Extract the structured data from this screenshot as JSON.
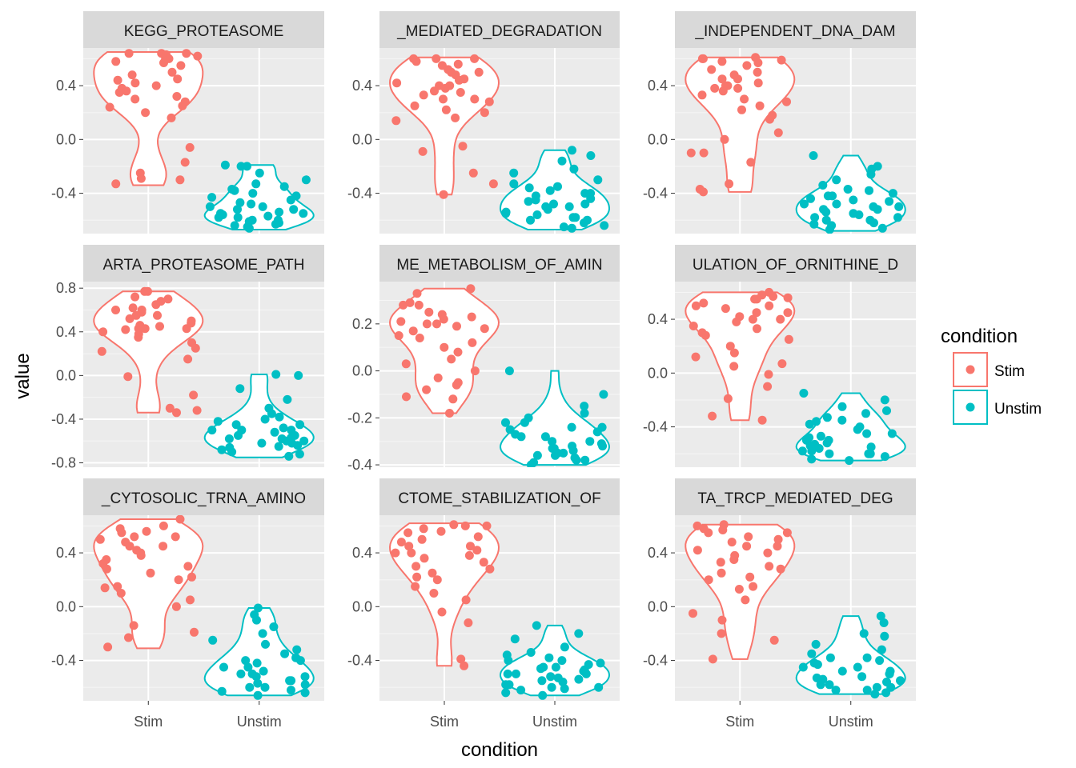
{
  "chart_data": {
    "type": "violin",
    "xlabel": "condition",
    "ylabel": "value",
    "categories": [
      "Stim",
      "Unstim"
    ],
    "colors": {
      "Stim": "#F8766D",
      "Unstim": "#00BFC4"
    },
    "legend": {
      "title": "condition",
      "placement": "right",
      "entries": [
        "Stim",
        "Unstim"
      ]
    },
    "panels": [
      {
        "title": "KEGG_PROTEASOME",
        "ylim": [
          -0.7,
          0.68
        ],
        "yticks": [
          -0.4,
          0.0,
          0.4
        ],
        "series": [
          {
            "name": "Stim",
            "range": [
              -0.34,
              0.65
            ],
            "points": [
              0.57,
              0.64,
              0.64,
              0.62,
              0.63,
              0.6,
              0.58,
              0.64,
              0.6,
              0.55,
              0.5,
              0.48,
              0.45,
              0.44,
              0.4,
              0.38,
              0.35,
              0.32,
              0.28,
              0.25,
              0.24,
              0.2,
              0.16,
              0.3,
              0.36,
              0.42,
              -0.06,
              -0.17,
              -0.25,
              -0.29,
              -0.3,
              -0.33
            ]
          },
          {
            "name": "Unstim",
            "range": [
              -0.67,
              -0.19
            ],
            "points": [
              -0.19,
              -0.2,
              -0.2,
              -0.25,
              -0.3,
              -0.33,
              -0.35,
              -0.37,
              -0.4,
              -0.42,
              -0.45,
              -0.47,
              -0.5,
              -0.52,
              -0.54,
              -0.55,
              -0.57,
              -0.58,
              -0.6,
              -0.61,
              -0.62,
              -0.64,
              -0.65,
              -0.66,
              -0.48,
              -0.55,
              -0.6,
              -0.43,
              -0.38,
              -0.56,
              -0.63,
              -0.5,
              -0.58,
              -0.52
            ]
          }
        ]
      },
      {
        "title": "_MEDIATED_DEGRADATION",
        "ylim": [
          -0.7,
          0.68
        ],
        "yticks": [
          -0.4,
          0.0,
          0.4
        ],
        "series": [
          {
            "name": "Stim",
            "range": [
              -0.41,
              0.61
            ],
            "points": [
              0.6,
              0.58,
              0.6,
              0.55,
              0.52,
              0.5,
              0.48,
              0.45,
              0.42,
              0.4,
              0.4,
              0.38,
              0.35,
              0.33,
              0.3,
              0.28,
              0.25,
              0.22,
              0.2,
              0.16,
              0.14,
              0.56,
              0.44,
              0.36,
              0.3,
              -0.05,
              -0.09,
              -0.25,
              -0.33,
              -0.41,
              0.6,
              0.5
            ]
          },
          {
            "name": "Unstim",
            "range": [
              -0.67,
              -0.08
            ],
            "points": [
              -0.08,
              -0.12,
              -0.16,
              -0.22,
              -0.25,
              -0.3,
              -0.33,
              -0.36,
              -0.38,
              -0.4,
              -0.42,
              -0.44,
              -0.46,
              -0.48,
              -0.5,
              -0.52,
              -0.54,
              -0.56,
              -0.58,
              -0.6,
              -0.62,
              -0.64,
              -0.65,
              -0.4,
              -0.45,
              -0.55,
              -0.6,
              -0.35,
              -0.5,
              -0.58,
              -0.66,
              -0.48
            ]
          }
        ]
      },
      {
        "title": "_INDEPENDENT_DNA_DAM",
        "ylim": [
          -0.7,
          0.68
        ],
        "yticks": [
          -0.4,
          0.0,
          0.4
        ],
        "series": [
          {
            "name": "Stim",
            "range": [
              -0.39,
              0.61
            ],
            "points": [
              0.61,
              0.59,
              0.57,
              0.6,
              0.55,
              0.52,
              0.5,
              0.48,
              0.45,
              0.42,
              0.4,
              0.4,
              0.38,
              0.36,
              0.33,
              0.3,
              0.28,
              0.25,
              0.22,
              0.18,
              0.15,
              0.58,
              0.45,
              0.38,
              -0.1,
              0.05,
              0.0,
              -0.1,
              -0.17,
              -0.33,
              -0.37,
              -0.39,
              0.6
            ]
          },
          {
            "name": "Unstim",
            "range": [
              -0.68,
              -0.12
            ],
            "points": [
              -0.12,
              -0.2,
              -0.22,
              -0.26,
              -0.3,
              -0.34,
              -0.37,
              -0.4,
              -0.42,
              -0.44,
              -0.46,
              -0.48,
              -0.5,
              -0.52,
              -0.54,
              -0.56,
              -0.58,
              -0.6,
              -0.62,
              -0.64,
              -0.66,
              -0.67,
              -0.45,
              -0.5,
              -0.55,
              -0.6,
              -0.38,
              -0.42,
              -0.58,
              -0.52,
              -0.48,
              -0.63
            ]
          }
        ]
      },
      {
        "title": "ARTA_PROTEASOME_PATH",
        "ylim": [
          -0.84,
          0.86
        ],
        "yticks": [
          -0.8,
          -0.4,
          0.0,
          0.4,
          0.8
        ],
        "series": [
          {
            "name": "Stim",
            "range": [
              -0.34,
              0.77
            ],
            "points": [
              0.77,
              0.77,
              0.72,
              0.7,
              0.68,
              0.65,
              0.62,
              0.6,
              0.58,
              0.55,
              0.52,
              0.5,
              0.48,
              0.45,
              0.43,
              0.43,
              0.42,
              0.4,
              0.38,
              0.35,
              0.3,
              0.25,
              0.22,
              0.46,
              0.55,
              0.6,
              0.15,
              -0.01,
              -0.18,
              -0.3,
              -0.32,
              -0.34,
              0.43
            ]
          },
          {
            "name": "Unstim",
            "range": [
              -0.75,
              0.01
            ],
            "points": [
              0.01,
              0.0,
              -0.12,
              -0.22,
              -0.3,
              -0.35,
              -0.4,
              -0.42,
              -0.45,
              -0.48,
              -0.5,
              -0.52,
              -0.55,
              -0.57,
              -0.58,
              -0.6,
              -0.62,
              -0.64,
              -0.66,
              -0.68,
              -0.7,
              -0.72,
              -0.74,
              -0.45,
              -0.5,
              -0.55,
              -0.6,
              -0.65,
              -0.38,
              -0.58,
              -0.62,
              -0.5
            ]
          }
        ]
      },
      {
        "title": "ME_METABOLISM_OF_AMIN",
        "ylim": [
          -0.41,
          0.38
        ],
        "yticks": [
          -0.4,
          -0.2,
          0.0,
          0.2
        ],
        "series": [
          {
            "name": "Stim",
            "range": [
              -0.18,
              0.35
            ],
            "points": [
              0.35,
              0.33,
              0.29,
              0.28,
              0.28,
              0.25,
              0.24,
              0.22,
              0.21,
              0.2,
              0.19,
              0.18,
              0.17,
              0.15,
              0.14,
              0.12,
              0.1,
              0.08,
              0.05,
              0.03,
              0.0,
              -0.03,
              -0.05,
              -0.06,
              -0.08,
              -0.11,
              -0.12,
              -0.18,
              0.23,
              0.2
            ]
          },
          {
            "name": "Unstim",
            "range": [
              -0.4,
              0.0
            ],
            "points": [
              0.0,
              -0.1,
              -0.15,
              -0.18,
              -0.2,
              -0.22,
              -0.24,
              -0.26,
              -0.28,
              -0.3,
              -0.31,
              -0.32,
              -0.33,
              -0.34,
              -0.35,
              -0.36,
              -0.37,
              -0.38,
              -0.39,
              -0.4,
              -0.25,
              -0.28,
              -0.3,
              -0.33,
              -0.36,
              -0.22,
              -0.27,
              -0.32,
              -0.38,
              -0.35,
              -0.24
            ]
          }
        ]
      },
      {
        "title": "ULATION_OF_ORNITHINE_D",
        "ylim": [
          -0.7,
          0.68
        ],
        "yticks": [
          -0.4,
          0.0,
          0.4
        ],
        "series": [
          {
            "name": "Stim",
            "range": [
              -0.35,
              0.6
            ],
            "points": [
              0.6,
              0.58,
              0.57,
              0.56,
              0.55,
              0.55,
              0.52,
              0.5,
              0.48,
              0.45,
              0.42,
              0.4,
              0.38,
              0.35,
              0.33,
              0.3,
              0.28,
              0.25,
              0.2,
              0.15,
              0.12,
              0.07,
              0.05,
              0.4,
              0.45,
              -0.01,
              -0.1,
              -0.19,
              -0.32,
              -0.35,
              0.5
            ]
          },
          {
            "name": "Unstim",
            "range": [
              -0.65,
              -0.15
            ],
            "points": [
              -0.15,
              -0.2,
              -0.25,
              -0.28,
              -0.3,
              -0.33,
              -0.36,
              -0.38,
              -0.4,
              -0.42,
              -0.45,
              -0.48,
              -0.5,
              -0.52,
              -0.54,
              -0.56,
              -0.58,
              -0.6,
              -0.62,
              -0.64,
              -0.65,
              -0.45,
              -0.5,
              -0.55,
              -0.6,
              -0.35,
              -0.58,
              -0.53,
              -0.47,
              -0.6
            ]
          }
        ]
      },
      {
        "title": "_CYTOSOLIC_TRNA_AMINO",
        "ylim": [
          -0.7,
          0.68
        ],
        "yticks": [
          -0.4,
          0.0,
          0.4
        ],
        "series": [
          {
            "name": "Stim",
            "range": [
              -0.31,
              0.65
            ],
            "points": [
              0.65,
              0.6,
              0.58,
              0.56,
              0.55,
              0.52,
              0.5,
              0.48,
              0.45,
              0.42,
              0.4,
              0.38,
              0.35,
              0.32,
              0.3,
              0.28,
              0.25,
              0.22,
              0.2,
              0.15,
              0.14,
              0.1,
              0.05,
              0.0,
              -0.14,
              -0.19,
              -0.23,
              -0.3,
              0.52,
              0.45
            ]
          },
          {
            "name": "Unstim",
            "range": [
              -0.66,
              -0.01
            ],
            "points": [
              -0.01,
              -0.06,
              -0.1,
              -0.15,
              -0.2,
              -0.25,
              -0.28,
              -0.32,
              -0.35,
              -0.38,
              -0.4,
              -0.42,
              -0.45,
              -0.48,
              -0.5,
              -0.52,
              -0.55,
              -0.57,
              -0.6,
              -0.62,
              -0.64,
              -0.66,
              -0.45,
              -0.5,
              -0.55,
              -0.6,
              -0.4,
              -0.58,
              -0.52,
              -0.63
            ]
          }
        ]
      },
      {
        "title": "CTOME_STABILIZATION_OF",
        "ylim": [
          -0.7,
          0.68
        ],
        "yticks": [
          -0.4,
          0.0,
          0.4
        ],
        "series": [
          {
            "name": "Stim",
            "range": [
              -0.44,
              0.62
            ],
            "points": [
              0.61,
              0.6,
              0.58,
              0.56,
              0.55,
              0.52,
              0.5,
              0.48,
              0.45,
              0.42,
              0.4,
              0.4,
              0.38,
              0.36,
              0.33,
              0.3,
              0.28,
              0.25,
              0.22,
              0.2,
              0.15,
              0.1,
              0.05,
              -0.04,
              -0.12,
              -0.39,
              -0.44,
              0.6,
              0.45
            ]
          },
          {
            "name": "Unstim",
            "range": [
              -0.66,
              -0.14
            ],
            "points": [
              -0.14,
              -0.2,
              -0.24,
              -0.3,
              -0.34,
              -0.38,
              -0.4,
              -0.42,
              -0.45,
              -0.47,
              -0.5,
              -0.52,
              -0.54,
              -0.56,
              -0.58,
              -0.6,
              -0.62,
              -0.64,
              -0.66,
              -0.45,
              -0.5,
              -0.55,
              -0.6,
              -0.4,
              -0.48,
              -0.53,
              -0.58,
              -0.43,
              -0.36,
              -0.61,
              -0.5,
              -0.46
            ]
          }
        ]
      },
      {
        "title": "TA_TRCP_MEDIATED_DEG",
        "ylim": [
          -0.7,
          0.68
        ],
        "yticks": [
          -0.4,
          0.0,
          0.4
        ],
        "series": [
          {
            "name": "Stim",
            "range": [
              -0.39,
              0.61
            ],
            "points": [
              0.61,
              0.6,
              0.58,
              0.57,
              0.55,
              0.52,
              0.5,
              0.48,
              0.45,
              0.42,
              0.4,
              0.38,
              0.35,
              0.33,
              0.3,
              0.28,
              0.25,
              0.22,
              0.2,
              0.15,
              0.13,
              0.05,
              -0.05,
              -0.1,
              -0.2,
              -0.25,
              -0.39,
              0.55,
              0.45
            ]
          },
          {
            "name": "Unstim",
            "range": [
              -0.65,
              -0.07
            ],
            "points": [
              -0.07,
              -0.12,
              -0.2,
              -0.22,
              -0.28,
              -0.32,
              -0.35,
              -0.38,
              -0.4,
              -0.42,
              -0.45,
              -0.48,
              -0.5,
              -0.52,
              -0.54,
              -0.56,
              -0.58,
              -0.6,
              -0.62,
              -0.64,
              -0.65,
              -0.45,
              -0.5,
              -0.55,
              -0.6,
              -0.38,
              -0.43,
              -0.53,
              -0.58,
              -0.62,
              -0.48
            ]
          }
        ]
      }
    ]
  }
}
